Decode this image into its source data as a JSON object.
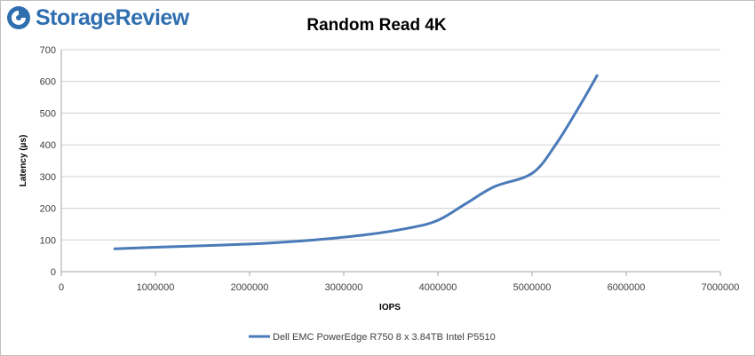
{
  "brand": {
    "name": "StorageReview",
    "icon": "storagereview-logo-icon",
    "color": "#2f6fb0"
  },
  "chart_data": {
    "type": "line",
    "title": "Random Read 4K",
    "xlabel": "IOPS",
    "ylabel": "Latency (µs)",
    "xlim": [
      0,
      7000000
    ],
    "ylim": [
      0,
      700
    ],
    "x_ticks": [
      0,
      1000000,
      2000000,
      3000000,
      4000000,
      5000000,
      6000000,
      7000000
    ],
    "y_ticks": [
      0,
      100,
      200,
      300,
      400,
      500,
      600,
      700
    ],
    "grid": "horizontal",
    "legend_position": "bottom",
    "series": [
      {
        "name": "Dell EMC PowerEdge R750 8 x 3.84TB Intel P5510",
        "color": "#4a7ab8",
        "x": [
          570000,
          1000000,
          2000000,
          2550000,
          3200000,
          3700000,
          4000000,
          4300000,
          4600000,
          5000000,
          5250000,
          5500000,
          5690000
        ],
        "y": [
          72,
          77,
          87,
          97,
          115,
          138,
          162,
          215,
          268,
          310,
          400,
          520,
          618
        ]
      }
    ]
  }
}
